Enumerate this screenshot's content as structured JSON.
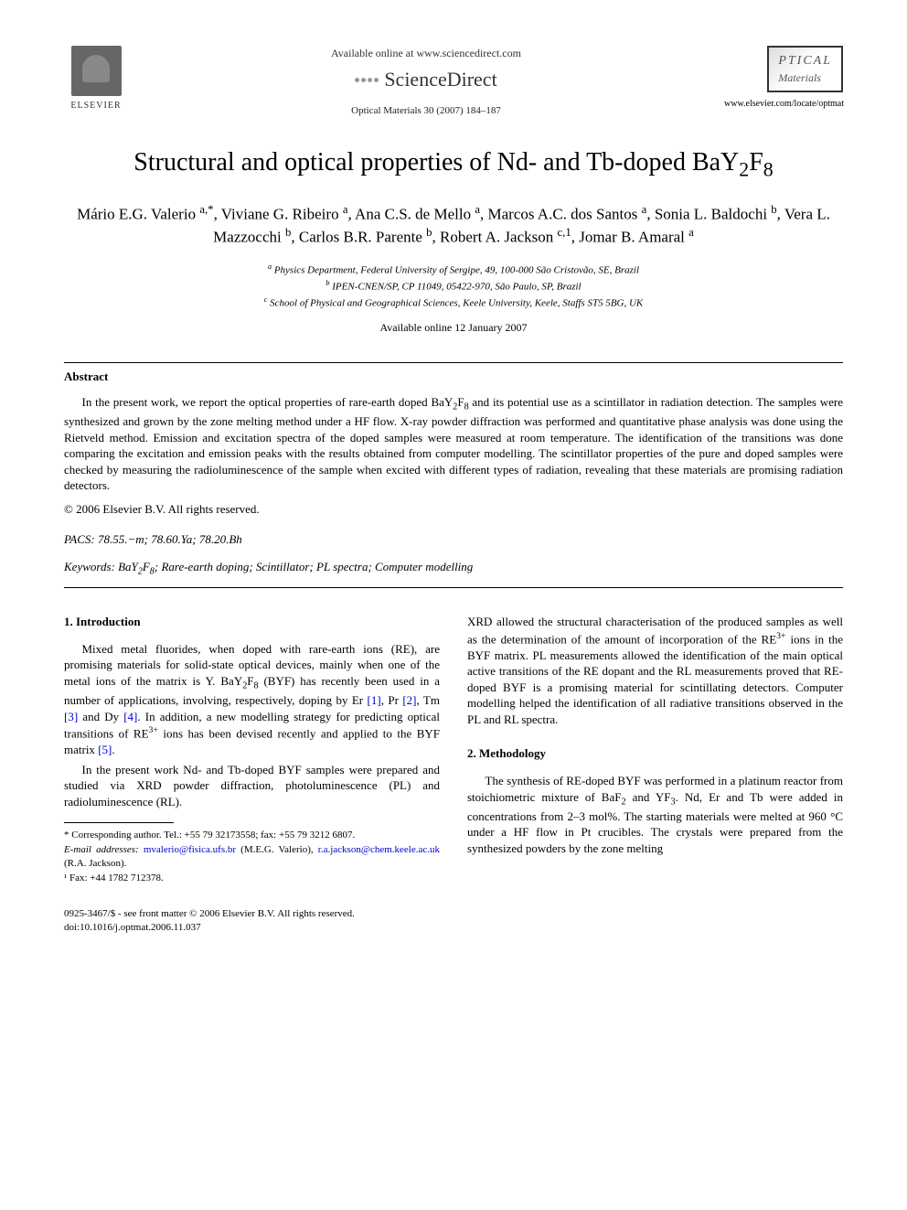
{
  "header": {
    "publisher": "ELSEVIER",
    "available_online": "Available online at www.sciencedirect.com",
    "sciencedirect": "ScienceDirect",
    "citation": "Optical Materials 30 (2007) 184–187",
    "journal_logo_line1": "PTICAL",
    "journal_logo_line2": "Materials",
    "journal_url": "www.elsevier.com/locate/optmat"
  },
  "article": {
    "title_html": "Structural and optical properties of Nd- and Tb-doped BaY<sub>2</sub>F<sub>8</sub>",
    "authors_html": "Mário E.G. Valerio <sup>a,*</sup>, Viviane G. Ribeiro <sup>a</sup>, Ana C.S. de Mello <sup>a</sup>, Marcos A.C. dos Santos <sup>a</sup>, Sonia L. Baldochi <sup>b</sup>, Vera L. Mazzocchi <sup>b</sup>, Carlos B.R. Parente <sup>b</sup>, Robert A. Jackson <sup>c,1</sup>, Jomar B. Amaral <sup>a</sup>",
    "affiliations": [
      "<sup>a</sup> Physics Department, Federal University of Sergipe, 49, 100-000 São Cristovão, SE, Brazil",
      "<sup>b</sup> IPEN-CNEN/SP, CP 11049, 05422-970, São Paulo, SP, Brazil",
      "<sup>c</sup> School of Physical and Geographical Sciences, Keele University, Keele, Staffs ST5 5BG, UK"
    ],
    "available_date": "Available online 12 January 2007"
  },
  "abstract": {
    "heading": "Abstract",
    "text_html": "In the present work, we report the optical properties of rare-earth doped BaY<sub>2</sub>F<sub>8</sub> and its potential use as a scintillator in radiation detection. The samples were synthesized and grown by the zone melting method under a HF flow. X-ray powder diffraction was performed and quantitative phase analysis was done using the Rietveld method. Emission and excitation spectra of the doped samples were measured at room temperature. The identification of the transitions was done comparing the excitation and emission peaks with the results obtained from computer modelling. The scintillator properties of the pure and doped samples were checked by measuring the radioluminescence of the sample when excited with different types of radiation, revealing that these materials are promising radiation detectors.",
    "copyright": "© 2006 Elsevier B.V. All rights reserved."
  },
  "pacs": {
    "label": "PACS:",
    "values": "78.55.−m; 78.60.Ya; 78.20.Bh"
  },
  "keywords": {
    "label": "Keywords:",
    "values_html": "BaY<sub>2</sub>F<sub>8</sub>; Rare-earth doping; Scintillator; PL spectra; Computer modelling"
  },
  "sections": {
    "intro": {
      "heading": "1. Introduction",
      "p1_html": "Mixed metal fluorides, when doped with rare-earth ions (RE), are promising materials for solid-state optical devices, mainly when one of the metal ions of the matrix is Y. BaY<sub>2</sub>F<sub>8</sub> (BYF) has recently been used in a number of applications, involving, respectively, doping by Er <span class=\"ref-link\">[1]</span>, Pr <span class=\"ref-link\">[2]</span>, Tm <span class=\"ref-link\">[3]</span> and Dy <span class=\"ref-link\">[4]</span>. In addition, a new modelling strategy for predicting optical transitions of RE<sup>3+</sup> ions has been devised recently and applied to the BYF matrix <span class=\"ref-link\">[5]</span>.",
      "p2_html": "In the present work Nd- and Tb-doped BYF samples were prepared and studied via XRD powder diffraction, photoluminescence (PL) and radioluminescence (RL).",
      "p3_html": "XRD allowed the structural characterisation of the produced samples as well as the determination of the amount of incorporation of the RE<sup>3+</sup> ions in the BYF matrix. PL measurements allowed the identification of the main optical active transitions of the RE dopant and the RL measurements proved that RE-doped BYF is a promising material for scintillating detectors. Computer modelling helped the identification of all radiative transitions observed in the PL and RL spectra."
    },
    "methodology": {
      "heading": "2. Methodology",
      "p1_html": "The synthesis of RE-doped BYF was performed in a platinum reactor from stoichiometric mixture of BaF<sub>2</sub> and YF<sub>3</sub>. Nd, Er and Tb were added in concentrations from 2–3 mol%. The starting materials were melted at 960 °C under a HF flow in Pt crucibles. The crystals were prepared from the synthesized powders by the zone melting"
    }
  },
  "footnotes": {
    "corresponding": "* Corresponding author. Tel.: +55 79 32173558; fax: +55 79 3212 6807.",
    "emails_label": "E-mail addresses:",
    "email1": "mvalerio@fisica.ufs.br",
    "email1_who": "(M.E.G. Valerio),",
    "email2": "r.a.jackson@chem.keele.ac.uk",
    "email2_who": "(R.A. Jackson).",
    "fax": "¹ Fax: +44 1782 712378."
  },
  "footer": {
    "front_matter": "0925-3467/$ - see front matter © 2006 Elsevier B.V. All rights reserved.",
    "doi": "doi:10.1016/j.optmat.2006.11.037"
  }
}
